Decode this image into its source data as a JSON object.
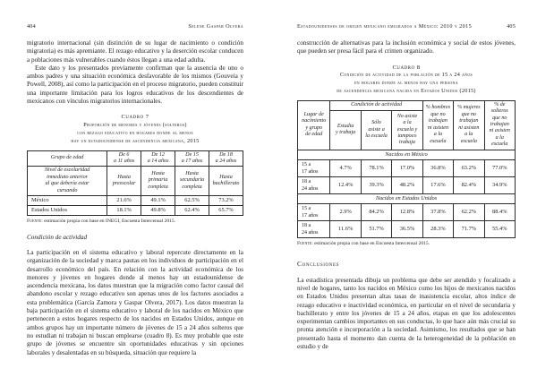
{
  "left_page": {
    "folio": "404",
    "running_head": "Selene Gaspar Olvera",
    "para1": "migratorio internacional (sin distinción de su lugar de nacimiento o condición migratoria) es más apremiante. El rezago educativo y la deserción escolar conducen a poblaciones más vulnerables cuando éstos llegan a una edad adulta.",
    "para2": "Este dato y los presentados previamente confirman que la ausencia de uno o ambos padres y una situación económica desfavorable de los mismos (Gouveia y Powell, 2008), así como la participación en el proceso migratorio, pueden constituir una importante limitación para los logros educativos de los descendientes de mexicanos con vínculos migratorios internacionales.",
    "cuadro7": {
      "title": "Cuadro 7",
      "caption_line1": "Proporción de menores y jóvenes (solteros)",
      "caption_line2": "con rezago educativo en hogares donde al menos",
      "caption_line3": "hay un estadounidense de ascendencia mexicana, 2015",
      "col_heads": [
        "Grupo de edad",
        "De 6\na 11 años",
        "De 12\na 14 años",
        "De 15\na 17 años",
        "De 18\na 24 años"
      ],
      "sub_heads": [
        "Nivel de escolaridad\ninmediato anterior\nal que debería estar\ncursando",
        "Hasta\npreescolar",
        "Hasta\nprimaria\ncompleta",
        "Hasta\nsecundaria\ncompleta",
        "Hasta\nbachillerato"
      ],
      "rows": [
        [
          "México",
          "21.6%",
          "49.1%",
          "62.5%",
          "73.2%"
        ],
        [
          "Estados Unidos",
          "18.1%",
          "49.8%",
          "62.4%",
          "65.7%"
        ]
      ],
      "source": "estimación propia con base en INEGI, Encuesta Intercensal 2015.",
      "source_label": "Fuente:"
    },
    "section_heading": "Condición de actividad",
    "para3": "La participación en el sistema educativo y laboral repercute directamente en la organización de la sociedad y marca pautas en los individuos de participación en el desarrollo económico del país. En relación con la actividad económica de los menores y jóvenes en hogares donde al menos hay un estadounidense de ascendencia mexicana, los datos muestran que la migración como factor causal del abandono escolar y rezago educativo son apenas unos de los factores asociados a esta problemática (García Zamora y Gaspar Olvera, 2017). Los datos muestran la baja participación en el sistema educativo y laboral de los nacidos en México que pertenecen a estos hogares respecto de los nacidos en Estados Unidos, aunque en ambos grupos hay un importante número de jóvenes de 15 a 24 años solteros que no estudian ni trabajan ni buscan emplearse (cuadro 8). Es muy probable que este grupo de jóvenes se encuentre sin oportunidades educativas y sin opciones laborales y desalentadas en su búsqueda, situación que requiere la"
  },
  "right_page": {
    "folio": "405",
    "running_head": "Estadounidenses de origen mexicano emigrados a México: 2010 y 2015",
    "para1": "construcción de alternativas para la inclusión económica y social de estos jóvenes, que pueden ser presa fácil para el crimen organizado.",
    "cuadro8": {
      "title": "Cuadro 8",
      "caption_line1": "Condición de actividad de la población de 15 a 24 años",
      "caption_line2": "en hogares donde al menos hay una persona",
      "caption_line3": "de ascendencia mexicana nacida en Estados Unidos (2015)",
      "corner_head": "Lugar de\nnacimiento\ny grupo\nde edad",
      "group_head": "Condición de actividad",
      "activity_heads": [
        "Estudia\ny trabaja",
        "Sólo\nasiste a\nla escuela",
        "No asiste\na la\nescuela y\ntampoco\ntrabaja"
      ],
      "pct_heads": [
        "% hombres\nque no\ntrabajan\nni asisten\na la\nescuela",
        "% mujeres\nque no\ntrabajan\nni asisten\na la\nescuela",
        "% de\nsolteros\nque no\ntrabajan\nni asisten\na la\nescuela"
      ],
      "band1_label": "Nacidos en México",
      "band1_rows": [
        [
          "15 a\n17 años",
          "4.7%",
          "78.1%",
          "17.0%",
          "36.8%",
          "63.2%",
          "77.0%"
        ],
        [
          "18 a\n24 años",
          "12.4%",
          "39.3%",
          "48.2%",
          "17.6%",
          "82.4%",
          "34.9%"
        ]
      ],
      "band2_label": "Nacidos en Estados Unidos",
      "band2_rows": [
        [
          "15 a\n17 años",
          "2.9%",
          "84.2%",
          "12.8%",
          "37.8%",
          "62.2%",
          "88.4%"
        ],
        [
          "18 a\n24 años",
          "11.6%",
          "51.7%",
          "36.5%",
          "28.3%",
          "71.7%",
          "55.4%"
        ]
      ],
      "source": "estimación propia con base en Encuesta Intercensal 2015.",
      "source_label": "Fuente:"
    },
    "conclusions_heading": "Conclusiones",
    "para2": "La estadística presentada dibuja un problema que debe ser atendido y focalizado a nivel de hogares, tanto los nacidos en México como los hijos de mexicanos nacidos en Estados Unidos presentan altas tasas de inasistencia escolar, altos índice de rezago educativo e inactividad económica, en particular en el nivel de secundaria y bachillerato y entre los jóvenes de 15 a 24 años, etapas en que los adolescentes experimentan cambios importantes en sus conductas, lo que hace aún más crucial su pronta atención e incorporación a la sociedad. Asimismo, los resultados que se han presentado hasta el momento dan cuenta de la heterogeneidad de la población en estudio y de"
  }
}
